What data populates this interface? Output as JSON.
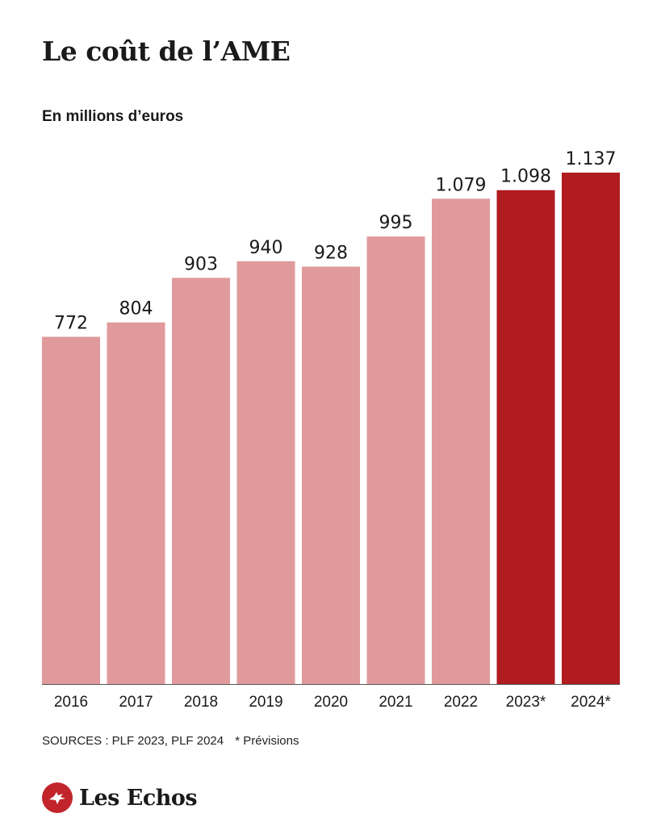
{
  "title": "Le coût de l’AME",
  "subtitle": "En millions d’euros",
  "sources": "SOURCES : PLF 2023, PLF 2024",
  "note": "* Prévisions",
  "logo_text": "Les Echos",
  "colors": {
    "actual": "#e09a9b",
    "forecast": "#b01c20",
    "logo": "#c2242c"
  },
  "chart_data": {
    "type": "bar",
    "categories": [
      "2016",
      "2017",
      "2018",
      "2019",
      "2020",
      "2021",
      "2022",
      "2023*",
      "2024*"
    ],
    "values": [
      772,
      804,
      903,
      940,
      928,
      995,
      1079,
      1098,
      1137
    ],
    "value_labels": [
      "772",
      "804",
      "903",
      "940",
      "928",
      "995",
      "1.079",
      "1.098",
      "1.137"
    ],
    "forecast": [
      false,
      false,
      false,
      false,
      false,
      false,
      false,
      true,
      true
    ],
    "ylim": [
      0,
      1137
    ],
    "xlabel": "",
    "ylabel": "",
    "grid": false,
    "legend": "none"
  }
}
